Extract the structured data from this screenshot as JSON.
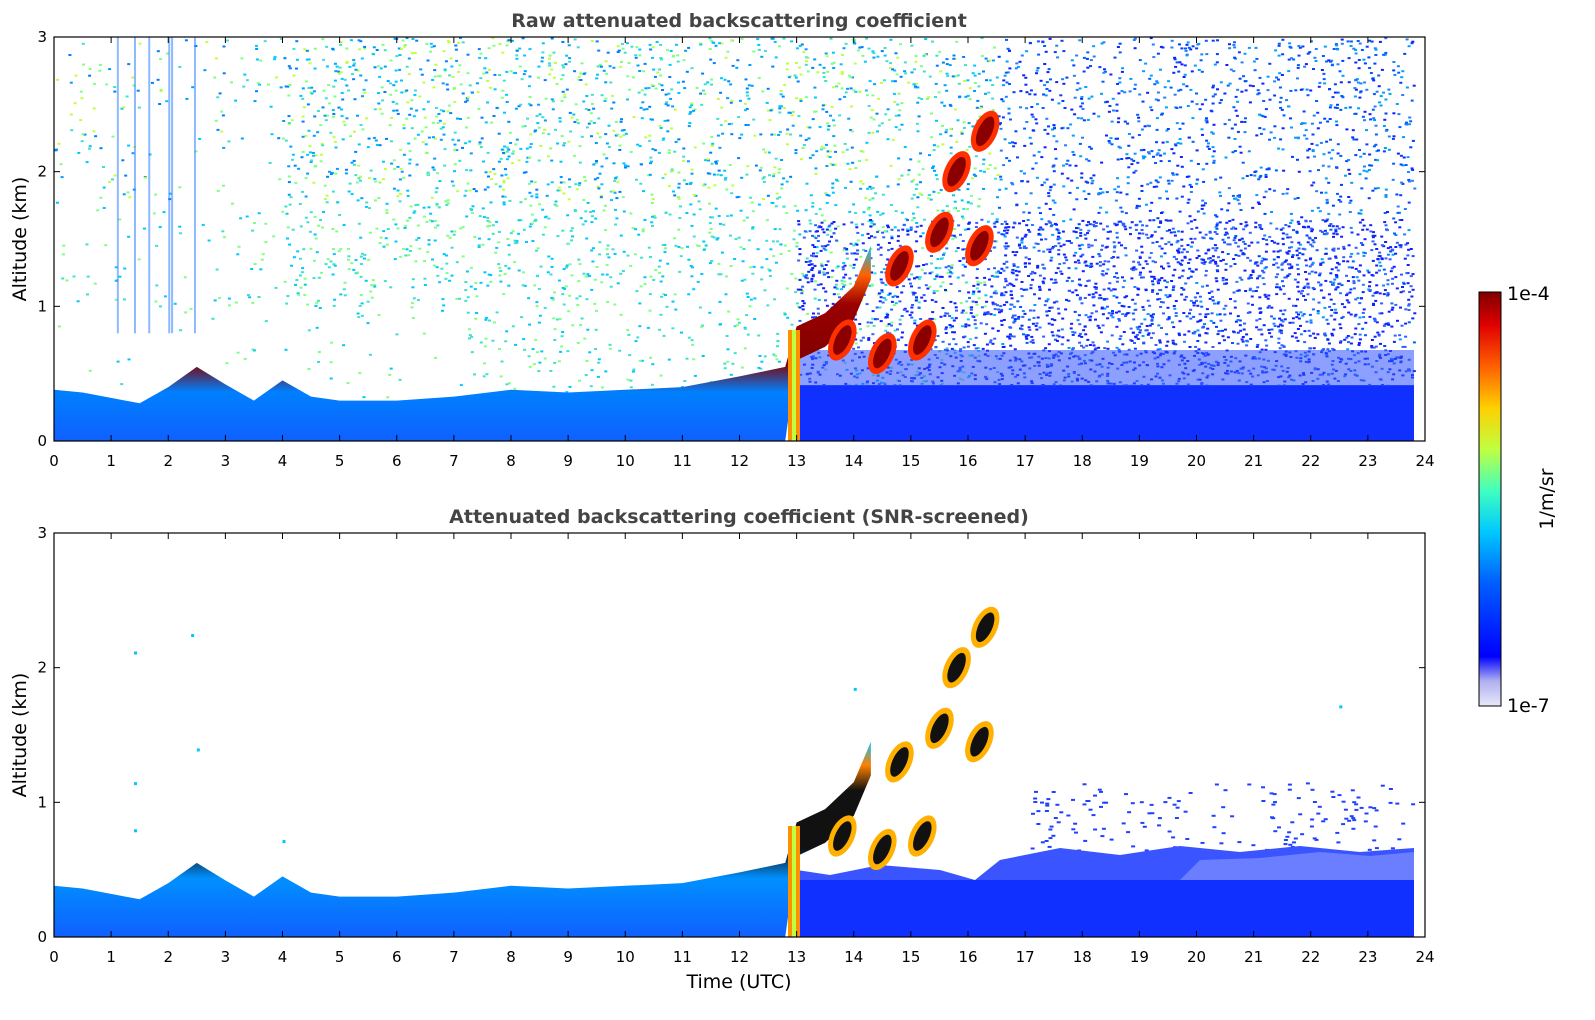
{
  "chart_data": [
    {
      "type": "heatmap",
      "title": "Raw attenuated backscattering coefficient",
      "xlabel": "",
      "ylabel": "Altitude (km)",
      "xlim": [
        0,
        24
      ],
      "ylim": [
        0,
        3
      ],
      "xticks": [
        "0",
        "1",
        "2",
        "3",
        "4",
        "5",
        "6",
        "7",
        "8",
        "9",
        "10",
        "11",
        "12",
        "13",
        "14",
        "15",
        "16",
        "17",
        "18",
        "19",
        "20",
        "21",
        "22",
        "23",
        "24"
      ],
      "yticks": [
        "0",
        "1",
        "2",
        "3"
      ],
      "layer_top_km": [
        [
          0.0,
          0.38
        ],
        [
          0.5,
          0.36
        ],
        [
          1.0,
          0.32
        ],
        [
          1.5,
          0.28
        ],
        [
          2.0,
          0.4
        ],
        [
          2.5,
          0.55
        ],
        [
          3.0,
          0.42
        ],
        [
          3.5,
          0.3
        ],
        [
          4.0,
          0.45
        ],
        [
          4.5,
          0.33
        ],
        [
          5.0,
          0.3
        ],
        [
          6.0,
          0.3
        ],
        [
          7.0,
          0.33
        ],
        [
          8.0,
          0.38
        ],
        [
          9.0,
          0.36
        ],
        [
          10.0,
          0.38
        ],
        [
          11.0,
          0.4
        ],
        [
          12.0,
          0.48
        ],
        [
          12.8,
          0.55
        ],
        [
          13.0,
          0.85
        ],
        [
          13.5,
          0.95
        ],
        [
          14.0,
          1.15
        ],
        [
          14.3,
          1.45
        ]
      ],
      "cloud_patches": [
        {
          "t": 14.5,
          "alt": 0.65
        },
        {
          "t": 15.2,
          "alt": 0.75
        },
        {
          "t": 15.5,
          "alt": 1.55
        },
        {
          "t": 15.8,
          "alt": 2.0
        },
        {
          "t": 16.3,
          "alt": 2.3
        },
        {
          "t": 16.2,
          "alt": 1.45
        },
        {
          "t": 13.8,
          "alt": 0.75
        },
        {
          "t": 14.8,
          "alt": 1.3
        }
      ]
    },
    {
      "type": "heatmap",
      "title": "Attenuated backscattering coefficient (SNR-screened)",
      "xlabel": "Time (UTC)",
      "ylabel": "Altitude (km)",
      "xlim": [
        0,
        24
      ],
      "ylim": [
        0,
        3
      ],
      "xticks": [
        "0",
        "1",
        "2",
        "3",
        "4",
        "5",
        "6",
        "7",
        "8",
        "9",
        "10",
        "11",
        "12",
        "13",
        "14",
        "15",
        "16",
        "17",
        "18",
        "19",
        "20",
        "21",
        "22",
        "23",
        "24"
      ],
      "yticks": [
        "0",
        "1",
        "2",
        "3"
      ]
    }
  ],
  "colorbar": {
    "label": "1/m/sr",
    "max_label": "1e-4",
    "min_label": "1e-7",
    "colors": [
      "#e8e8f8",
      "#b0b0f0",
      "#0000ff",
      "#0060ff",
      "#00c8ff",
      "#40ffc0",
      "#c0ff40",
      "#ffd000",
      "#ff6000",
      "#e00000",
      "#800000"
    ]
  }
}
